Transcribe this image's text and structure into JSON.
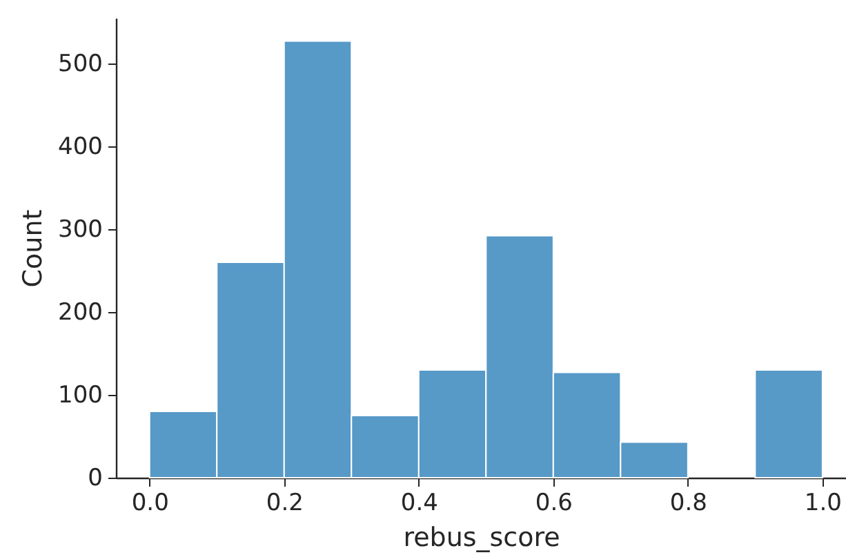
{
  "chart_data": {
    "type": "histogram",
    "xlabel": "rebus_score",
    "ylabel": "Count",
    "bins": [
      0.0,
      0.1,
      0.2,
      0.3,
      0.4,
      0.5,
      0.6,
      0.7,
      0.8,
      0.9,
      1.0
    ],
    "values": [
      80,
      260,
      527,
      75,
      130,
      292,
      127,
      43,
      0,
      130
    ],
    "color": "#5799c7",
    "xlim": [
      -0.05,
      1.035
    ],
    "xticks": [
      {
        "value": 0,
        "label": "0.0"
      },
      0.2,
      0.4,
      0.6,
      0.8,
      {
        "value": 1,
        "label": "1.0"
      }
    ],
    "ylim": [
      0,
      555
    ],
    "yticks": [
      0,
      100,
      200,
      300,
      400,
      500
    ],
    "grid": false
  }
}
